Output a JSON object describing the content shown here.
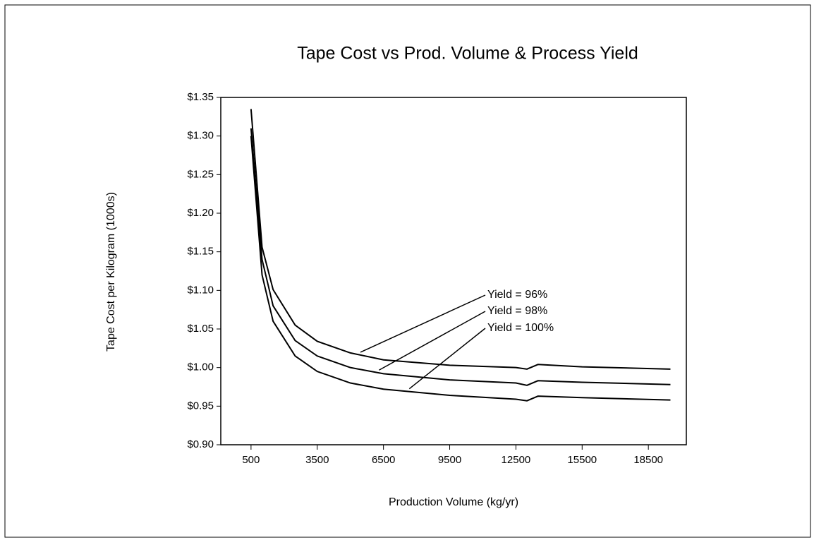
{
  "chart_data": {
    "type": "line",
    "title": "Tape Cost vs Prod. Volume & Process Yield",
    "x_label": "Production Volume (kg/yr)",
    "y_label": "Tape Cost per Kilogram (1000s)",
    "x": [
      500,
      1000,
      1500,
      2500,
      3500,
      5000,
      6500,
      9500,
      12500,
      13000,
      13500,
      15500,
      19500
    ],
    "series": [
      {
        "name": "Yield = 96%",
        "color": "#000000",
        "values": [
          1.335,
          1.156,
          1.101,
          1.055,
          1.034,
          1.019,
          1.01,
          1.003,
          1.0,
          0.998,
          1.004,
          1.001,
          0.998
        ]
      },
      {
        "name": "Yield = 98%",
        "color": "#000000",
        "values": [
          1.31,
          1.14,
          1.08,
          1.035,
          1.015,
          1.0,
          0.992,
          0.984,
          0.98,
          0.977,
          0.983,
          0.981,
          0.978
        ]
      },
      {
        "name": "Yield = 100%",
        "color": "#000000",
        "values": [
          1.3,
          1.12,
          1.06,
          1.015,
          0.995,
          0.98,
          0.972,
          0.964,
          0.959,
          0.957,
          0.963,
          0.961,
          0.958
        ]
      }
    ],
    "xlim": [
      -870,
      20220
    ],
    "xticks": [
      500,
      3500,
      6500,
      9500,
      12500,
      15500,
      18500
    ],
    "ylim": [
      0.9,
      1.35
    ],
    "yticks": [
      {
        "value": 0.9,
        "label": "$0.90"
      },
      {
        "value": 0.95,
        "label": "$0.95"
      },
      {
        "value": 1.0,
        "label": "$1.00"
      },
      {
        "value": 1.05,
        "label": "$1.05"
      },
      {
        "value": 1.1,
        "label": "$1.10"
      },
      {
        "value": 1.15,
        "label": "$1.15"
      },
      {
        "value": 1.2,
        "label": "$1.20"
      },
      {
        "value": 1.25,
        "label": "$1.25"
      },
      {
        "value": 1.3,
        "label": "$1.30"
      },
      {
        "value": 1.35,
        "label": "$1.35"
      }
    ],
    "grid": false
  }
}
